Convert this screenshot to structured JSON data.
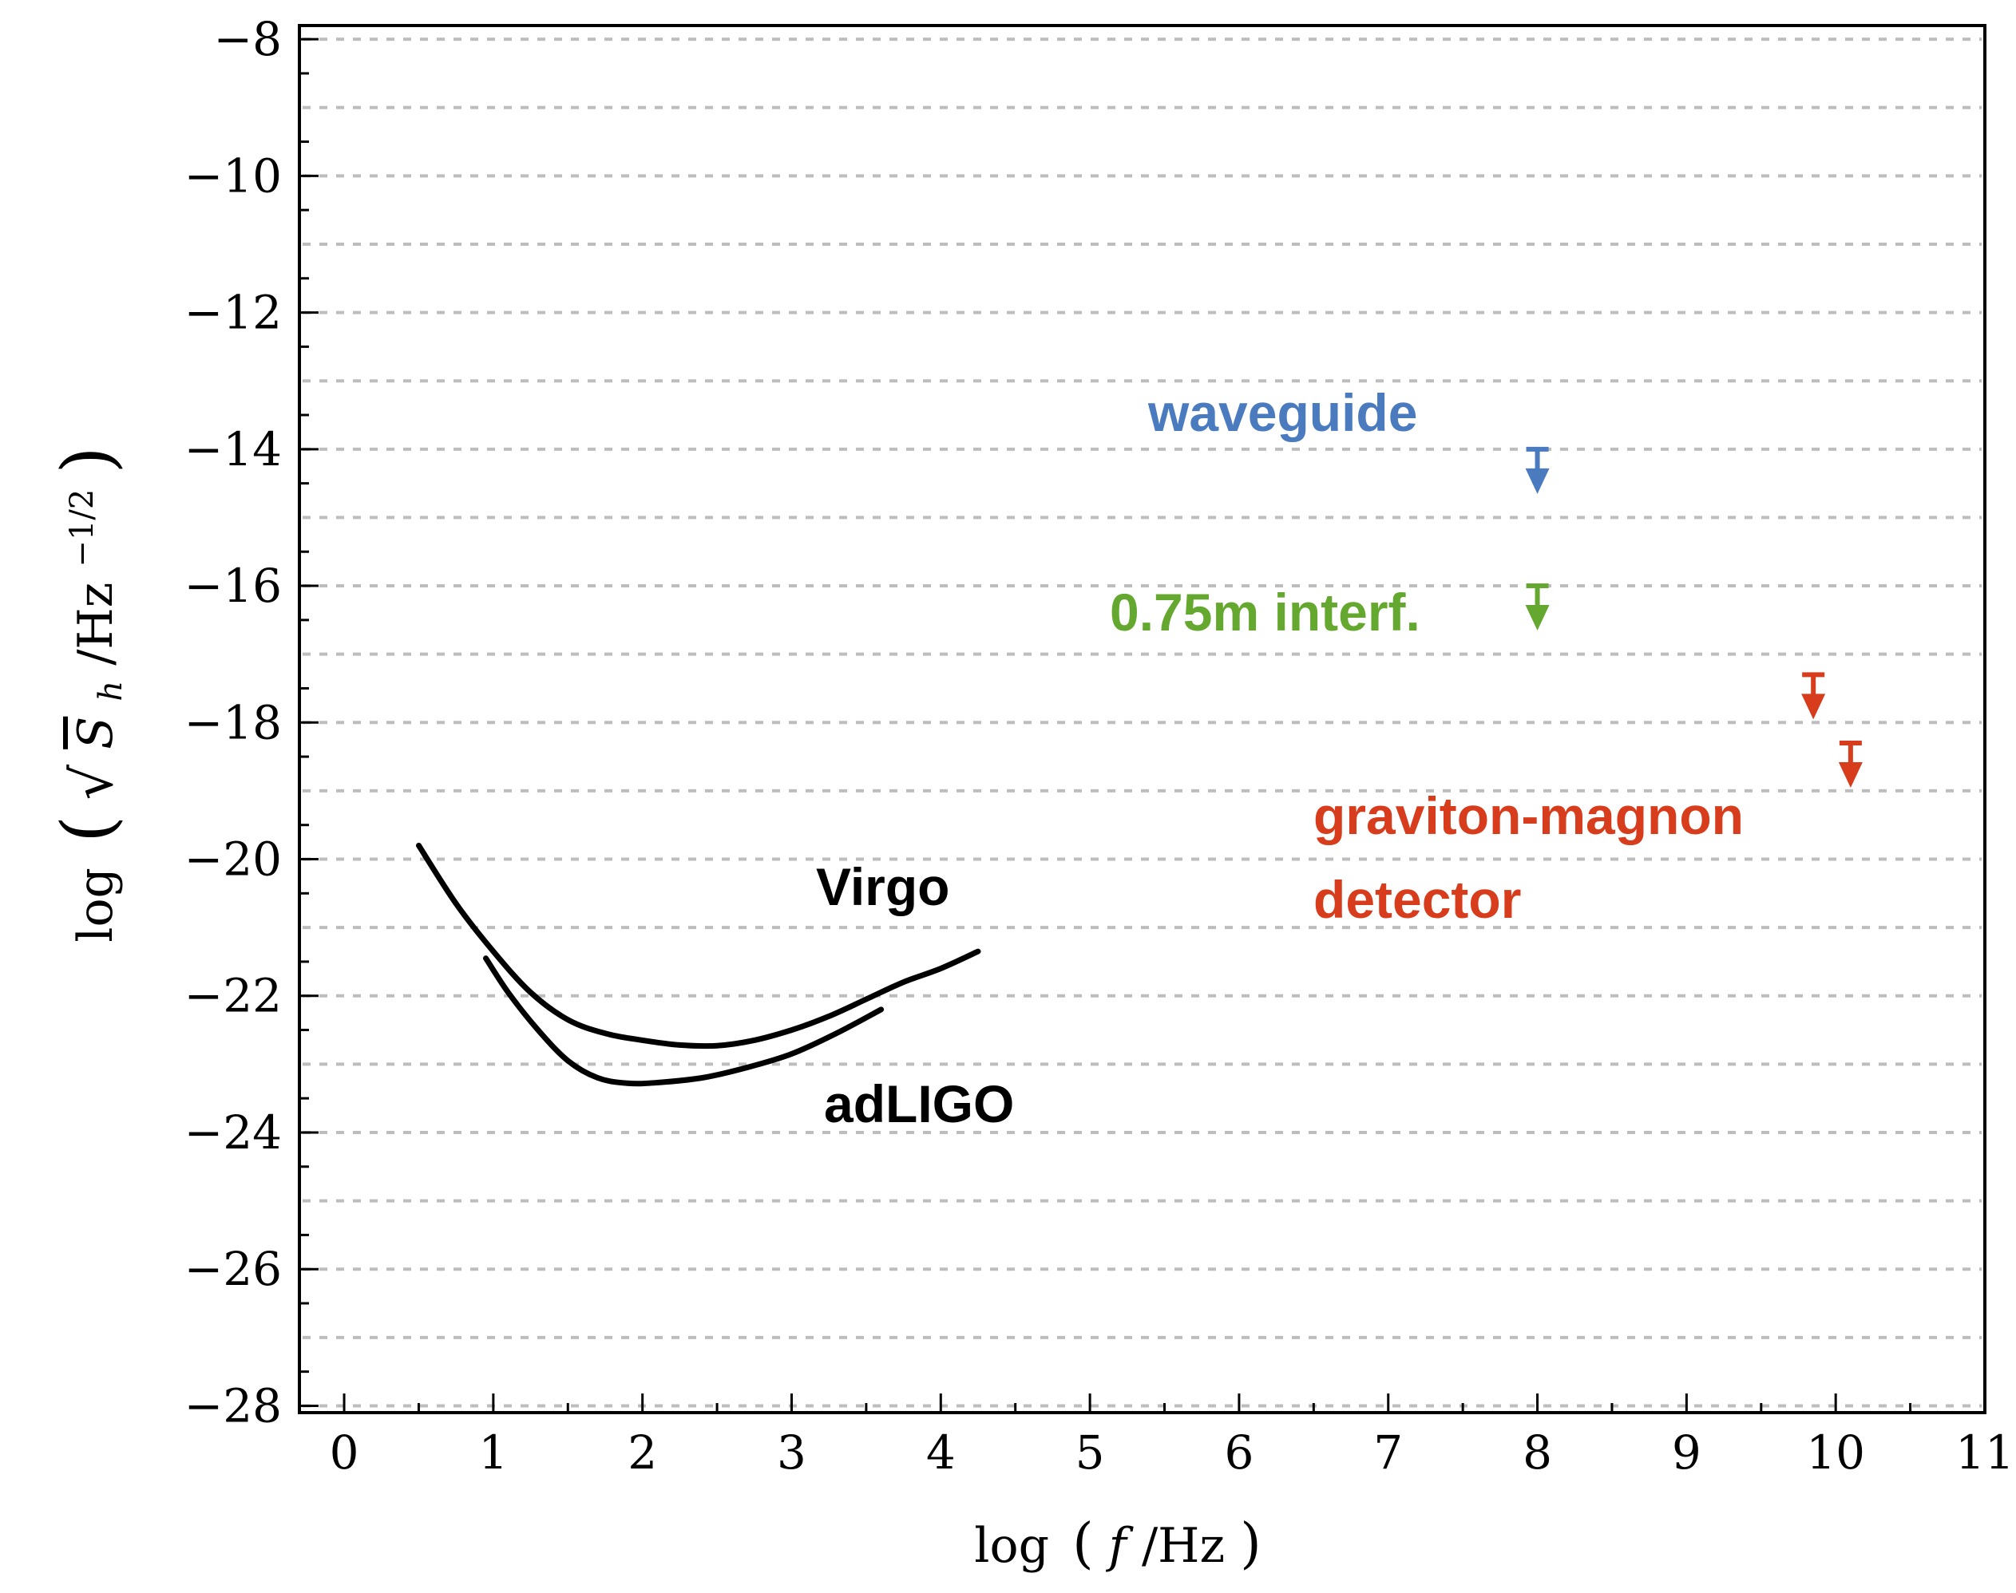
{
  "chart_data": {
    "type": "line",
    "title": "",
    "xlabel": "log(f/Hz)",
    "ylabel": "log(√S_h/Hz^−1/2)",
    "xlim": [
      -0.3,
      11
    ],
    "ylim": [
      -28.1,
      -7.8
    ],
    "grid": true,
    "x_ticks": [
      0,
      1,
      2,
      3,
      4,
      5,
      6,
      7,
      8,
      9,
      10,
      11
    ],
    "x_tick_labels": [
      "0",
      "1",
      "2",
      "3",
      "4",
      "5",
      "6",
      "7",
      "8",
      "9",
      "10",
      "11"
    ],
    "y_ticks": [
      -8,
      -10,
      -12,
      -14,
      -16,
      -18,
      -20,
      -22,
      -24,
      -26,
      -28
    ],
    "y_tick_labels": [
      "−8",
      "−10",
      "−12",
      "−14",
      "−16",
      "−18",
      "−20",
      "−22",
      "−24",
      "−26",
      "−28"
    ],
    "series": [
      {
        "name": "Virgo",
        "color": "#000000",
        "x": [
          0.5,
          0.75,
          1.0,
          1.25,
          1.5,
          1.75,
          2.0,
          2.25,
          2.5,
          2.75,
          3.0,
          3.25,
          3.5,
          3.75,
          4.0,
          4.25
        ],
        "y": [
          -19.8,
          -20.65,
          -21.35,
          -21.95,
          -22.35,
          -22.55,
          -22.65,
          -22.72,
          -22.73,
          -22.65,
          -22.5,
          -22.3,
          -22.05,
          -21.8,
          -21.6,
          -21.35
        ]
      },
      {
        "name": "adLIGO",
        "color": "#000000",
        "x": [
          0.95,
          1.1,
          1.3,
          1.5,
          1.7,
          1.9,
          2.1,
          2.4,
          2.7,
          3.0,
          3.3,
          3.6
        ],
        "y": [
          -21.45,
          -21.95,
          -22.5,
          -22.95,
          -23.2,
          -23.28,
          -23.27,
          -23.2,
          -23.05,
          -22.85,
          -22.55,
          -22.2
        ]
      }
    ],
    "upper_limits": [
      {
        "name": "waveguide",
        "color": "#4a7bbf",
        "x": 8.0,
        "y": -14.0
      },
      {
        "name": "0.75m interf.",
        "color": "#64a82f",
        "x": 8.0,
        "y": -16.0
      },
      {
        "name": "graviton-magnon detector",
        "color": "#d73d1c",
        "x": 9.85,
        "y": -17.3
      },
      {
        "name": "graviton-magnon detector",
        "color": "#d73d1c",
        "x": 10.1,
        "y": -18.3
      }
    ],
    "annotations": [
      {
        "text": "Virgo",
        "color": "#000000"
      },
      {
        "text": "adLIGO",
        "color": "#000000"
      },
      {
        "text": "waveguide",
        "color": "#4a7bbf"
      },
      {
        "text": "0.75m interf.",
        "color": "#64a82f"
      },
      {
        "text": "graviton-magnon",
        "color": "#d73d1c"
      },
      {
        "text": "detector",
        "color": "#d73d1c"
      }
    ],
    "axis_label_parts": {
      "x": [
        "log",
        "(",
        "f",
        "/Hz",
        ")"
      ],
      "y": [
        "log",
        "(",
        "√",
        "S",
        "h",
        "/Hz",
        "−1/2",
        ")"
      ]
    }
  }
}
